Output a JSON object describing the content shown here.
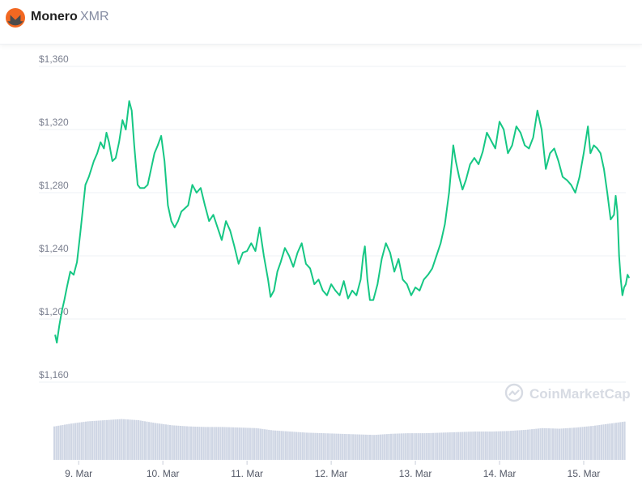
{
  "header": {
    "coin_name": "Monero",
    "coin_symbol": "XMR",
    "logo_icon": "monero-logo-icon",
    "logo_color": "#f26822"
  },
  "watermark": {
    "text": "CoinMarketCap",
    "icon": "coinmarketcap-logo-icon"
  },
  "chart_data": {
    "type": "line",
    "title": "",
    "xlabel": "",
    "ylabel": "",
    "x_ticks": [
      "9. Mar",
      "10. Mar",
      "11. Mar",
      "12. Mar",
      "13. Mar",
      "14. Mar",
      "15. Mar"
    ],
    "y_ticks": [
      "$1,160",
      "$1,200",
      "$1,240",
      "$1,280",
      "$1,320",
      "$1,360"
    ],
    "ylim": [
      1160,
      1360
    ],
    "xlim": [
      8.7,
      15.5
    ],
    "grid": true,
    "line_color": "#16c784",
    "volume_color": "#cfd6e4",
    "series": [
      {
        "values": [
          [
            8.72,
            1190
          ],
          [
            8.74,
            1185
          ],
          [
            8.77,
            1196
          ],
          [
            8.8,
            1205
          ],
          [
            8.83,
            1212
          ],
          [
            8.86,
            1220
          ],
          [
            8.9,
            1230
          ],
          [
            8.94,
            1228
          ],
          [
            8.98,
            1236
          ],
          [
            9.02,
            1255
          ],
          [
            9.05,
            1270
          ],
          [
            9.08,
            1285
          ],
          [
            9.12,
            1290
          ],
          [
            9.15,
            1295
          ],
          [
            9.18,
            1300
          ],
          [
            9.22,
            1305
          ],
          [
            9.26,
            1312
          ],
          [
            9.3,
            1308
          ],
          [
            9.33,
            1318
          ],
          [
            9.36,
            1312
          ],
          [
            9.4,
            1300
          ],
          [
            9.44,
            1302
          ],
          [
            9.48,
            1312
          ],
          [
            9.52,
            1326
          ],
          [
            9.56,
            1320
          ],
          [
            9.6,
            1338
          ],
          [
            9.63,
            1332
          ],
          [
            9.66,
            1310
          ],
          [
            9.7,
            1285
          ],
          [
            9.73,
            1283
          ],
          [
            9.78,
            1283
          ],
          [
            9.82,
            1285
          ],
          [
            9.86,
            1295
          ],
          [
            9.9,
            1305
          ],
          [
            9.94,
            1310
          ],
          [
            9.98,
            1316
          ],
          [
            10.02,
            1300
          ],
          [
            10.06,
            1272
          ],
          [
            10.1,
            1262
          ],
          [
            10.14,
            1258
          ],
          [
            10.18,
            1262
          ],
          [
            10.22,
            1268
          ],
          [
            10.26,
            1270
          ],
          [
            10.3,
            1272
          ],
          [
            10.35,
            1285
          ],
          [
            10.4,
            1280
          ],
          [
            10.45,
            1283
          ],
          [
            10.5,
            1272
          ],
          [
            10.55,
            1262
          ],
          [
            10.6,
            1266
          ],
          [
            10.65,
            1258
          ],
          [
            10.7,
            1250
          ],
          [
            10.75,
            1262
          ],
          [
            10.8,
            1256
          ],
          [
            10.85,
            1246
          ],
          [
            10.9,
            1235
          ],
          [
            10.95,
            1242
          ],
          [
            11.0,
            1243
          ],
          [
            11.05,
            1248
          ],
          [
            11.1,
            1243
          ],
          [
            11.15,
            1258
          ],
          [
            11.2,
            1240
          ],
          [
            11.25,
            1225
          ],
          [
            11.28,
            1214
          ],
          [
            11.32,
            1218
          ],
          [
            11.36,
            1230
          ],
          [
            11.4,
            1236
          ],
          [
            11.45,
            1245
          ],
          [
            11.5,
            1240
          ],
          [
            11.55,
            1233
          ],
          [
            11.6,
            1242
          ],
          [
            11.65,
            1248
          ],
          [
            11.7,
            1235
          ],
          [
            11.75,
            1232
          ],
          [
            11.8,
            1222
          ],
          [
            11.85,
            1225
          ],
          [
            11.9,
            1218
          ],
          [
            11.95,
            1215
          ],
          [
            12.0,
            1222
          ],
          [
            12.05,
            1218
          ],
          [
            12.1,
            1215
          ],
          [
            12.15,
            1224
          ],
          [
            12.2,
            1213
          ],
          [
            12.25,
            1218
          ],
          [
            12.3,
            1215
          ],
          [
            12.35,
            1225
          ],
          [
            12.38,
            1240
          ],
          [
            12.4,
            1246
          ],
          [
            12.43,
            1225
          ],
          [
            12.46,
            1212
          ],
          [
            12.5,
            1212
          ],
          [
            12.55,
            1222
          ],
          [
            12.6,
            1238
          ],
          [
            12.65,
            1248
          ],
          [
            12.7,
            1242
          ],
          [
            12.75,
            1230
          ],
          [
            12.8,
            1238
          ],
          [
            12.85,
            1225
          ],
          [
            12.9,
            1222
          ],
          [
            12.95,
            1215
          ],
          [
            13.0,
            1220
          ],
          [
            13.05,
            1218
          ],
          [
            13.1,
            1225
          ],
          [
            13.15,
            1228
          ],
          [
            13.2,
            1232
          ],
          [
            13.25,
            1240
          ],
          [
            13.3,
            1248
          ],
          [
            13.35,
            1260
          ],
          [
            13.4,
            1280
          ],
          [
            13.45,
            1310
          ],
          [
            13.48,
            1300
          ],
          [
            13.52,
            1290
          ],
          [
            13.56,
            1282
          ],
          [
            13.6,
            1288
          ],
          [
            13.65,
            1298
          ],
          [
            13.7,
            1302
          ],
          [
            13.75,
            1298
          ],
          [
            13.8,
            1306
          ],
          [
            13.85,
            1318
          ],
          [
            13.9,
            1313
          ],
          [
            13.95,
            1308
          ],
          [
            14.0,
            1325
          ],
          [
            14.05,
            1320
          ],
          [
            14.1,
            1305
          ],
          [
            14.15,
            1310
          ],
          [
            14.2,
            1322
          ],
          [
            14.25,
            1318
          ],
          [
            14.3,
            1310
          ],
          [
            14.35,
            1308
          ],
          [
            14.4,
            1315
          ],
          [
            14.45,
            1332
          ],
          [
            14.5,
            1320
          ],
          [
            14.55,
            1295
          ],
          [
            14.6,
            1305
          ],
          [
            14.65,
            1308
          ],
          [
            14.7,
            1300
          ],
          [
            14.75,
            1290
          ],
          [
            14.8,
            1288
          ],
          [
            14.85,
            1285
          ],
          [
            14.9,
            1280
          ],
          [
            14.95,
            1290
          ],
          [
            15.0,
            1305
          ],
          [
            15.05,
            1322
          ],
          [
            15.08,
            1305
          ],
          [
            15.12,
            1310
          ],
          [
            15.16,
            1308
          ],
          [
            15.2,
            1305
          ],
          [
            15.24,
            1295
          ],
          [
            15.28,
            1280
          ],
          [
            15.32,
            1263
          ],
          [
            15.36,
            1266
          ],
          [
            15.38,
            1278
          ],
          [
            15.4,
            1268
          ],
          [
            15.42,
            1240
          ],
          [
            15.44,
            1225
          ],
          [
            15.46,
            1215
          ],
          [
            15.48,
            1220
          ],
          [
            15.5,
            1222
          ],
          [
            15.52,
            1228
          ],
          [
            15.54,
            1226
          ]
        ]
      }
    ],
    "volume": {
      "x": [
        8.7,
        8.9,
        9.1,
        9.3,
        9.5,
        9.7,
        9.9,
        10.1,
        10.3,
        10.5,
        10.7,
        10.9,
        11.1,
        11.3,
        11.5,
        11.7,
        11.9,
        12.1,
        12.3,
        12.5,
        12.7,
        12.9,
        13.1,
        13.3,
        13.5,
        13.7,
        13.9,
        14.1,
        14.3,
        14.5,
        14.7,
        14.9,
        15.1,
        15.3,
        15.5
      ],
      "values": [
        0.59,
        0.64,
        0.68,
        0.7,
        0.72,
        0.7,
        0.65,
        0.61,
        0.59,
        0.58,
        0.58,
        0.57,
        0.56,
        0.52,
        0.5,
        0.48,
        0.47,
        0.46,
        0.45,
        0.44,
        0.46,
        0.47,
        0.47,
        0.48,
        0.49,
        0.5,
        0.5,
        0.51,
        0.53,
        0.56,
        0.55,
        0.57,
        0.6,
        0.64,
        0.68
      ]
    }
  }
}
